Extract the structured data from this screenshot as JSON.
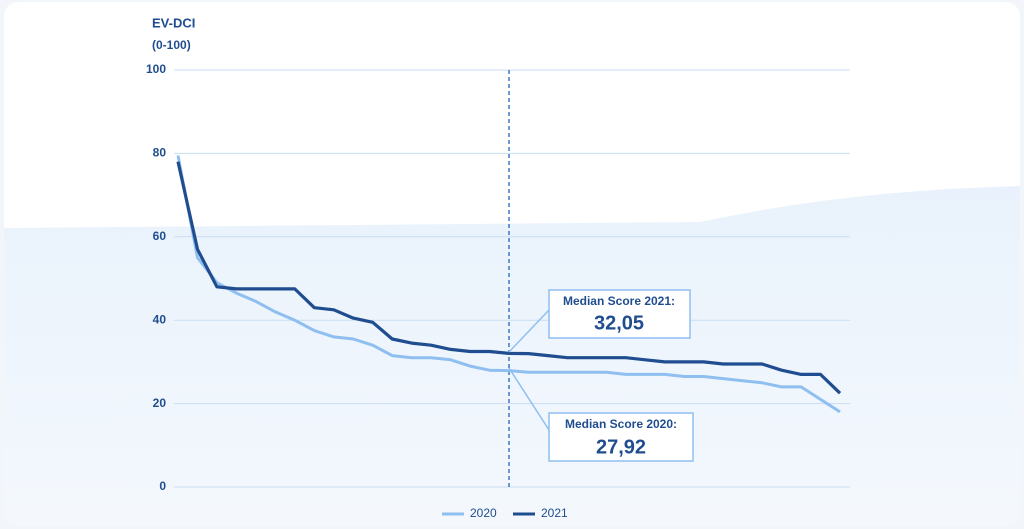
{
  "chart_data": {
    "type": "line",
    "title": "EV-DCI",
    "subtitle": "(0-100)",
    "categories": [
      null,
      null,
      null,
      null,
      null,
      null,
      null,
      null,
      null,
      null,
      null,
      null,
      null,
      null,
      null,
      null,
      null,
      null,
      null,
      null,
      null,
      null,
      null,
      null,
      null,
      null,
      null,
      null,
      null,
      null,
      null,
      null,
      null,
      null,
      null
    ],
    "series": [
      {
        "name": "2020",
        "color": "#8fbff0",
        "values": [
          79.5,
          55,
          49,
          46.5,
          44.5,
          42,
          40,
          37.5,
          36,
          35.5,
          34,
          31.5,
          31,
          31,
          30.5,
          29,
          28,
          27.92,
          27.5,
          27.5,
          27.5,
          27.5,
          27.5,
          27,
          27,
          27,
          26.5,
          26.5,
          26,
          25.5,
          25,
          24,
          24,
          21,
          18
        ]
      },
      {
        "name": "2021",
        "color": "#1f4d8f",
        "values": [
          78,
          57,
          48,
          47.5,
          47.5,
          47.5,
          47.5,
          43,
          42.5,
          40.5,
          39.5,
          35.5,
          34.5,
          34,
          33,
          32.5,
          32.5,
          32.05,
          32,
          31.5,
          31,
          31,
          31,
          31,
          30.5,
          30,
          30,
          30,
          29.5,
          29.5,
          29.5,
          28,
          27,
          27,
          22.5
        ]
      }
    ],
    "annotations": [
      {
        "label": "Median Score 2021:",
        "value": "32,05"
      },
      {
        "label": "Median Score 2020:",
        "value": "27,92"
      }
    ],
    "ylim": [
      0,
      100
    ],
    "yticks": [
      0,
      20,
      40,
      60,
      80,
      100
    ],
    "grid": true
  }
}
